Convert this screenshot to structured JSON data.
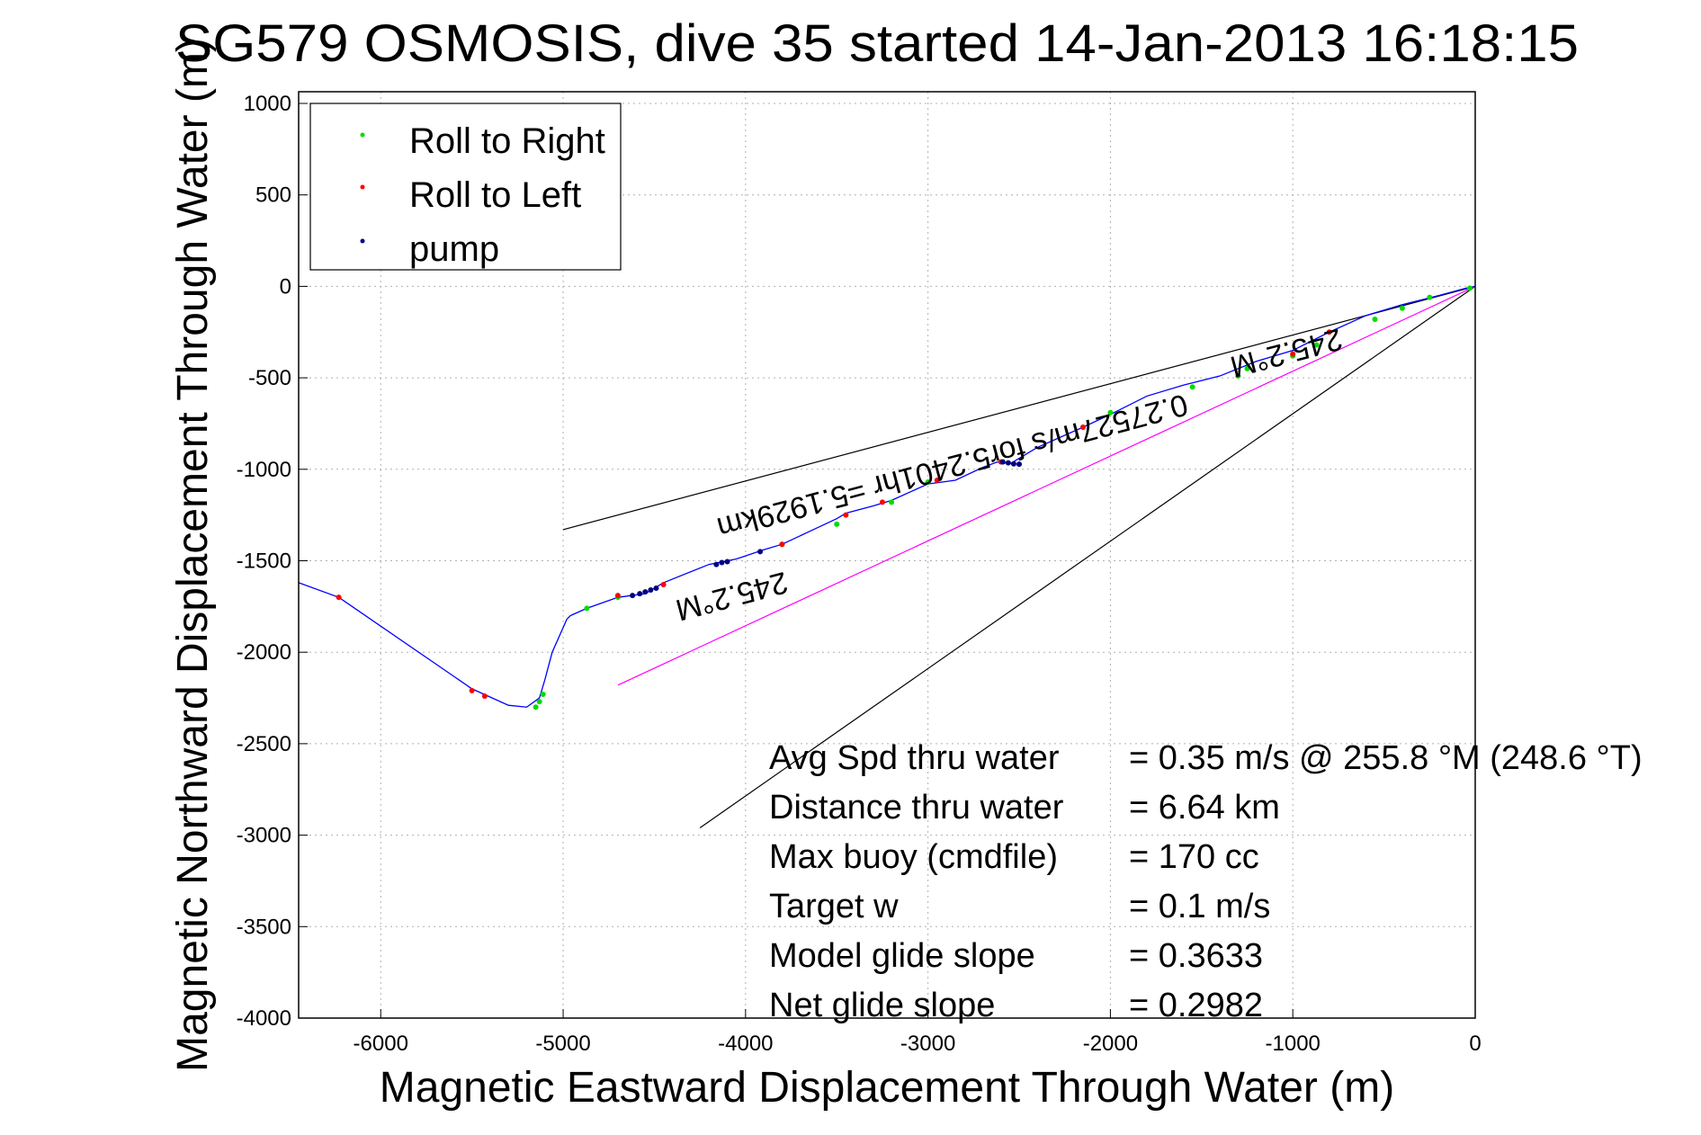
{
  "chart_data": {
    "type": "line",
    "title": "SG579 OSMOSIS, dive 35 started 14-Jan-2013 16:18:15",
    "xlabel": "Magnetic Eastward Displacement Through Water (m)",
    "ylabel": "Magnetic Northward Displacement Through Water (m)",
    "xlim": [
      -6450,
      0
    ],
    "ylim": [
      -4000,
      1000
    ],
    "xticks": [
      -6000,
      -5000,
      -4000,
      -3000,
      -2000,
      -1000,
      0
    ],
    "xtick_labels": [
      "-6000",
      "-5000",
      "-4000",
      "-3000",
      "-2000",
      "-1000",
      "0"
    ],
    "yticks": [
      1000,
      500,
      0,
      -500,
      -1000,
      -1500,
      -2000,
      -2500,
      -3000,
      -3500,
      -4000
    ],
    "ytick_labels": [
      "1000",
      "500",
      "0",
      "-500",
      "-1000",
      "-1500",
      "-2000",
      "-2500",
      "-3000",
      "-3500",
      "-4000"
    ],
    "grid": true,
    "legend_position": "top-left",
    "legend": [
      {
        "label": "Roll to Right",
        "color": "#00dd00"
      },
      {
        "label": "Roll to Left",
        "color": "#ff0000"
      },
      {
        "label": "pump",
        "color": "#000080"
      }
    ],
    "track": {
      "color": "#0000ff",
      "x": [
        -6450,
        -6230,
        -5500,
        -5300,
        -5200,
        -5130,
        -5100,
        -5060,
        -4980,
        -4960,
        -4870,
        -4700,
        -4550,
        -4450,
        -4200,
        -4050,
        -3900,
        -3800,
        -3650,
        -3500,
        -3450,
        -3300,
        -3200,
        -3000,
        -2850,
        -2700,
        -2620,
        -2550,
        -2400,
        -2150,
        -2000,
        -1800,
        -1600,
        -1400,
        -1200,
        -1000,
        -800,
        -600,
        -400,
        -200,
        -50,
        0
      ],
      "y": [
        -1620,
        -1700,
        -2200,
        -2290,
        -2300,
        -2250,
        -2150,
        -2000,
        -1820,
        -1800,
        -1760,
        -1700,
        -1680,
        -1620,
        -1520,
        -1490,
        -1440,
        -1410,
        -1340,
        -1270,
        -1240,
        -1200,
        -1170,
        -1080,
        -1060,
        -990,
        -960,
        -970,
        -880,
        -770,
        -700,
        -600,
        -540,
        -490,
        -410,
        -350,
        -250,
        -160,
        -100,
        -50,
        -10,
        0
      ]
    },
    "roll_right": {
      "x": [
        -5110,
        -5130,
        -5150,
        -4870,
        -4700,
        -3800,
        -3500,
        -3200,
        -3000,
        -2150,
        -2000,
        -1550,
        -1300,
        -1250,
        -1000,
        -870,
        -550,
        -400,
        -250,
        -30
      ],
      "y": [
        -2230,
        -2270,
        -2300,
        -1760,
        -1700,
        -1410,
        -1300,
        -1180,
        -1070,
        -770,
        -690,
        -550,
        -490,
        -450,
        -380,
        -320,
        -180,
        -120,
        -60,
        -10
      ]
    },
    "roll_left": {
      "x": [
        -6230,
        -5500,
        -5430,
        -4700,
        -4450,
        -3800,
        -3450,
        -3250,
        -2950,
        -2600,
        -2150,
        -1000,
        -800
      ],
      "y": [
        -1700,
        -2210,
        -2240,
        -1690,
        -1630,
        -1410,
        -1250,
        -1180,
        -1060,
        -960,
        -770,
        -370,
        -250
      ]
    },
    "pump": {
      "x": [
        -4620,
        -4580,
        -4550,
        -4520,
        -4490,
        -4160,
        -4130,
        -4100,
        -2590,
        -2560,
        -2530,
        -2500,
        -3920
      ],
      "y": [
        -1690,
        -1680,
        -1670,
        -1660,
        -1650,
        -1520,
        -1510,
        -1505,
        -960,
        -965,
        -970,
        -972,
        -1450
      ]
    },
    "lines": [
      {
        "name": "bearing-line-upper",
        "color": "#000000",
        "x": [
          -5000,
          0
        ],
        "y": [
          -1330,
          0
        ]
      },
      {
        "name": "bearing-line-lower",
        "color": "#000000",
        "x": [
          -4250,
          0
        ],
        "y": [
          -2960,
          0
        ]
      },
      {
        "name": "current-vector",
        "color": "#ff00ff",
        "x": [
          -4700,
          0
        ],
        "y": [
          -2180,
          0
        ]
      }
    ],
    "annotations": [
      {
        "text": "245.2°M",
        "x": -1050,
        "y": -310
      },
      {
        "text": "0.27527m/s for5.2401hr =5.1929km",
        "x": -2880,
        "y": -930
      },
      {
        "text": "245.2°M",
        "x": -4090,
        "y": -1640
      }
    ],
    "info_box": [
      {
        "label": "Avg Spd thru water",
        "value": "=  0.35 m/s @ 255.8 °M (248.6 °T)"
      },
      {
        "label": "Distance thru water",
        "value": "=  6.64 km"
      },
      {
        "label": "Max buoy (cmdfile)",
        "value": "= 170 cc"
      },
      {
        "label": "Target w",
        "value": "= 0.1 m/s"
      },
      {
        "label": "Model glide slope",
        "value": "= 0.3633"
      },
      {
        "label": "Net glide slope",
        "value": "= 0.2982"
      }
    ]
  }
}
